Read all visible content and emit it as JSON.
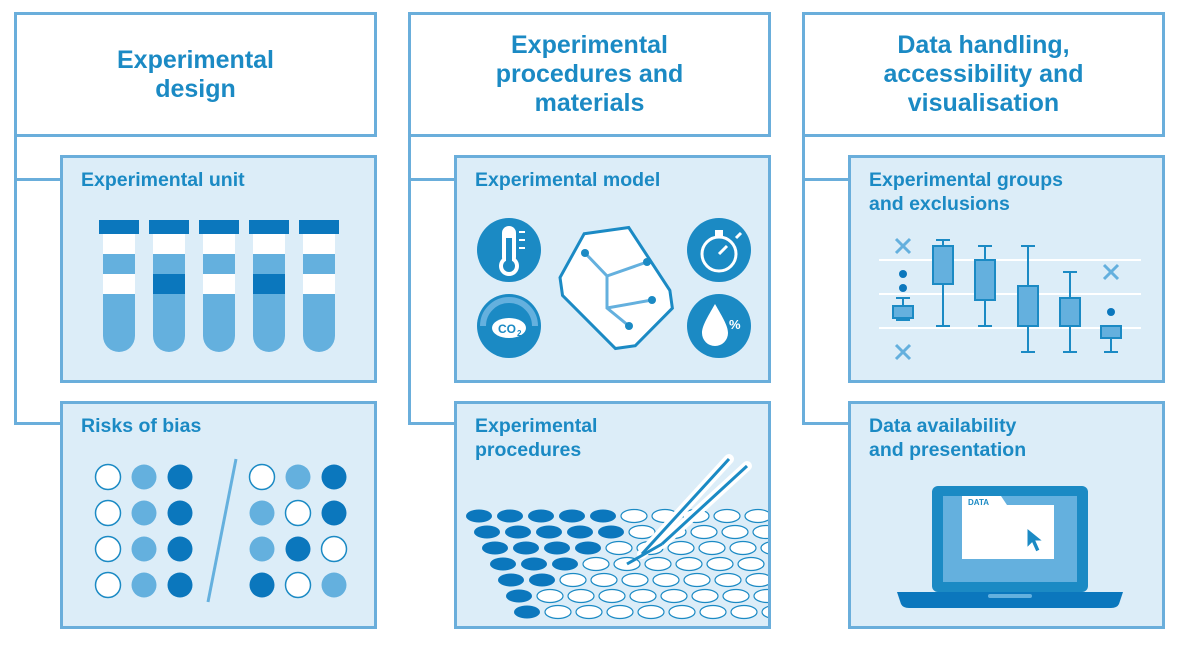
{
  "colors": {
    "border": "#6aaedb",
    "title": "#1b8ac4",
    "panel_bg": "#dcedf8",
    "light": "#64b0de",
    "dark": "#0b77bd"
  },
  "columns": [
    {
      "header": "Experimental\ndesign",
      "panels": [
        {
          "title": "Experimental unit",
          "icon": "test-tubes-icon"
        },
        {
          "title": "Risks of bias",
          "icon": "dot-grid-icon"
        }
      ]
    },
    {
      "header": "Experimental\nprocedures and\nmaterials",
      "panels": [
        {
          "title": "Experimental model",
          "icon": "lab-conditions-icon",
          "co2_label": "CO",
          "co2_sub": "2",
          "percent_label": "%"
        },
        {
          "title": "Experimental\nprocedures",
          "icon": "well-plate-pipette-icon"
        }
      ]
    },
    {
      "header": "Data handling,\naccessibility and\nvisualisation",
      "panels": [
        {
          "title": "Experimental groups\nand exclusions",
          "icon": "box-plot-icon"
        },
        {
          "title": "Data availability\nand presentation",
          "icon": "laptop-data-icon",
          "folder_label": "DATA"
        }
      ]
    }
  ]
}
